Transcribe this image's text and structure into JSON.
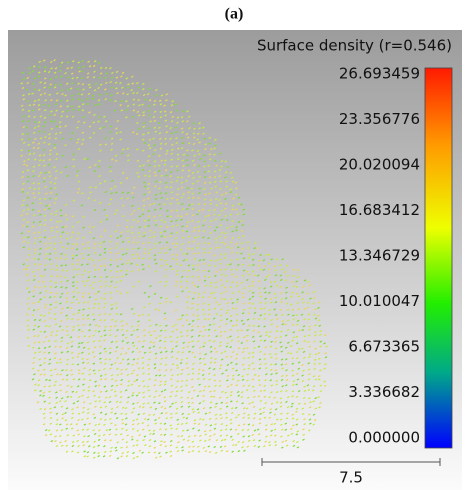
{
  "panel_label": "(a)",
  "scalar_field": {
    "title": "Surface density (r=0.546)",
    "labels": [
      "26.693459",
      "23.356776",
      "20.020094",
      "16.683412",
      "13.346729",
      "10.010047",
      "6.673365",
      "3.336682",
      "0.000000"
    ]
  },
  "scale_bar": {
    "label": "7.5"
  }
}
